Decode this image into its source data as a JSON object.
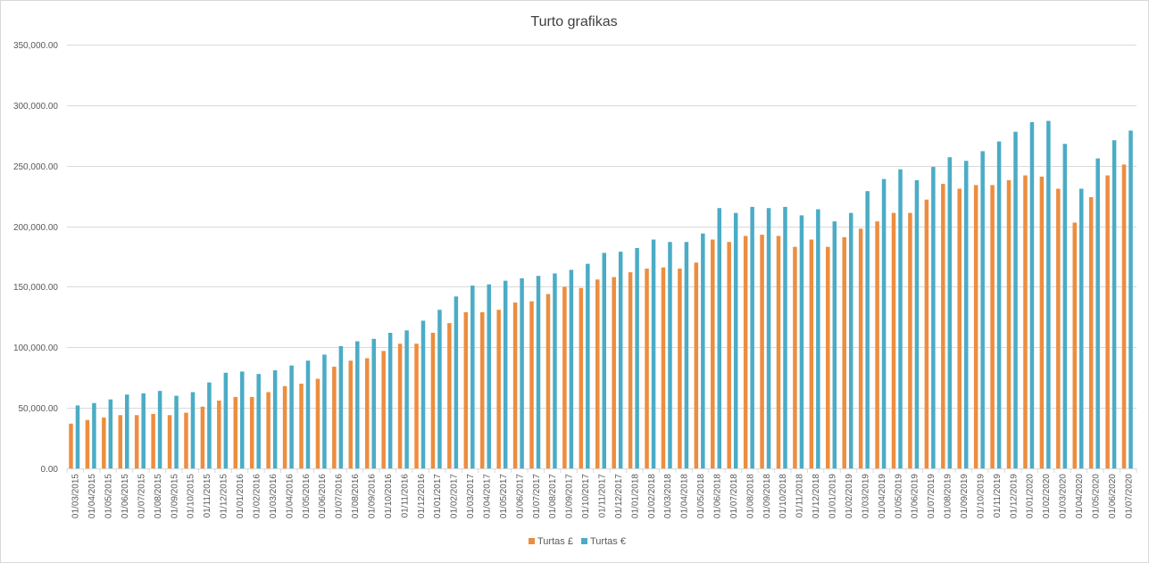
{
  "chart_data": {
    "type": "bar",
    "title": "Turto grafikas",
    "xlabel": "",
    "ylabel": "",
    "ylim": [
      0,
      350000
    ],
    "yticks": [
      0,
      50000,
      100000,
      150000,
      200000,
      250000,
      300000,
      350000
    ],
    "ytick_labels": [
      "0.00",
      "50,000.00",
      "100,000.00",
      "150,000.00",
      "200,000.00",
      "250,000.00",
      "300,000.00",
      "350,000.00"
    ],
    "grid": true,
    "legend_position": "bottom",
    "categories": [
      "01/03/2015",
      "01/04/2015",
      "01/05/2015",
      "01/06/2015",
      "01/07/2015",
      "01/08/2015",
      "01/09/2015",
      "01/10/2015",
      "01/11/2015",
      "01/12/2015",
      "01/01/2016",
      "01/02/2016",
      "01/03/2016",
      "01/04/2016",
      "01/05/2016",
      "01/06/2016",
      "01/07/2016",
      "01/08/2016",
      "01/09/2016",
      "01/10/2016",
      "01/11/2016",
      "01/12/2016",
      "01/01/2017",
      "01/02/2017",
      "01/03/2017",
      "01/04/2017",
      "01/05/2017",
      "01/06/2017",
      "01/07/2017",
      "01/08/2017",
      "01/09/2017",
      "01/10/2017",
      "01/11/2017",
      "01/12/2017",
      "01/01/2018",
      "01/02/2018",
      "01/03/2018",
      "01/04/2018",
      "01/05/2018",
      "01/06/2018",
      "01/07/2018",
      "01/08/2018",
      "01/09/2018",
      "01/10/2018",
      "01/11/2018",
      "01/12/2018",
      "01/01/2019",
      "01/02/2019",
      "01/03/2019",
      "01/04/2019",
      "01/05/2019",
      "01/06/2019",
      "01/07/2019",
      "01/08/2019",
      "01/09/2019",
      "01/10/2019",
      "01/11/2019",
      "01/12/2019",
      "01/01/2020",
      "01/02/2020",
      "01/03/2020",
      "01/04/2020",
      "01/05/2020",
      "01/06/2020",
      "01/07/2020"
    ],
    "series": [
      {
        "name": "Turtas £",
        "color": "#ED8D3F",
        "values": [
          37000,
          40000,
          42000,
          44000,
          44000,
          45000,
          44000,
          46000,
          51000,
          56000,
          59000,
          59000,
          63000,
          68000,
          70000,
          74000,
          84000,
          89000,
          91000,
          97000,
          103000,
          103000,
          112000,
          120000,
          129000,
          129000,
          131000,
          137000,
          138000,
          144000,
          150000,
          149000,
          156000,
          158000,
          162000,
          165000,
          166000,
          165000,
          170000,
          189000,
          187000,
          192000,
          193000,
          192000,
          183000,
          189000,
          183000,
          191000,
          198000,
          204000,
          211000,
          211000,
          222000,
          235000,
          231000,
          234000,
          234000,
          238000,
          242000,
          241000,
          231000,
          203000,
          224000,
          242000,
          251000
        ]
      },
      {
        "name": "Turtas €",
        "color": "#4BACC6",
        "values": [
          52000,
          54000,
          57000,
          61000,
          62000,
          64000,
          60000,
          63000,
          71000,
          79000,
          80000,
          78000,
          81000,
          85000,
          89000,
          94000,
          101000,
          105000,
          107000,
          112000,
          114000,
          122000,
          131000,
          142000,
          151000,
          152000,
          155000,
          157000,
          159000,
          161000,
          164000,
          169000,
          178000,
          179000,
          182000,
          189000,
          187000,
          187000,
          194000,
          215000,
          211000,
          216000,
          215000,
          216000,
          209000,
          214000,
          204000,
          211000,
          229000,
          239000,
          247000,
          238000,
          249000,
          257000,
          254000,
          262000,
          270000,
          278000,
          286000,
          287000,
          268000,
          231000,
          256000,
          271000,
          279000
        ]
      }
    ]
  }
}
